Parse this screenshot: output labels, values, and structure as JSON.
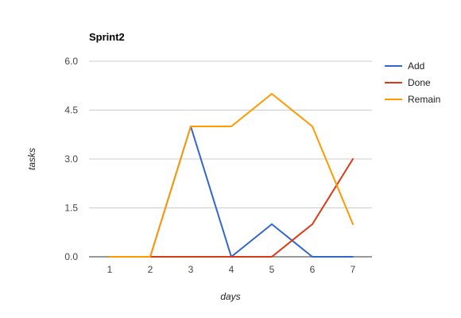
{
  "chart_data": {
    "type": "line",
    "title": "Sprint2",
    "xlabel": "days",
    "ylabel": "tasks",
    "categories": [
      "1",
      "2",
      "3",
      "4",
      "5",
      "6",
      "7"
    ],
    "series": [
      {
        "name": "Add",
        "color": "#3366cc",
        "values": [
          0,
          0,
          4,
          0,
          1,
          0,
          0
        ]
      },
      {
        "name": "Done",
        "color": "#dc3912",
        "values": [
          0,
          0,
          0,
          0,
          0,
          1,
          3
        ]
      },
      {
        "name": "Remain",
        "color": "#ff9900",
        "values": [
          0,
          0,
          4,
          4,
          5,
          4,
          1
        ]
      }
    ],
    "y_ticks": [
      "0.0",
      "1.5",
      "3.0",
      "4.5",
      "6.0"
    ],
    "y_tick_values": [
      0,
      1.5,
      3,
      4.5,
      6
    ],
    "ylim": [
      0,
      6
    ],
    "grid": true,
    "legend_position": "right"
  }
}
